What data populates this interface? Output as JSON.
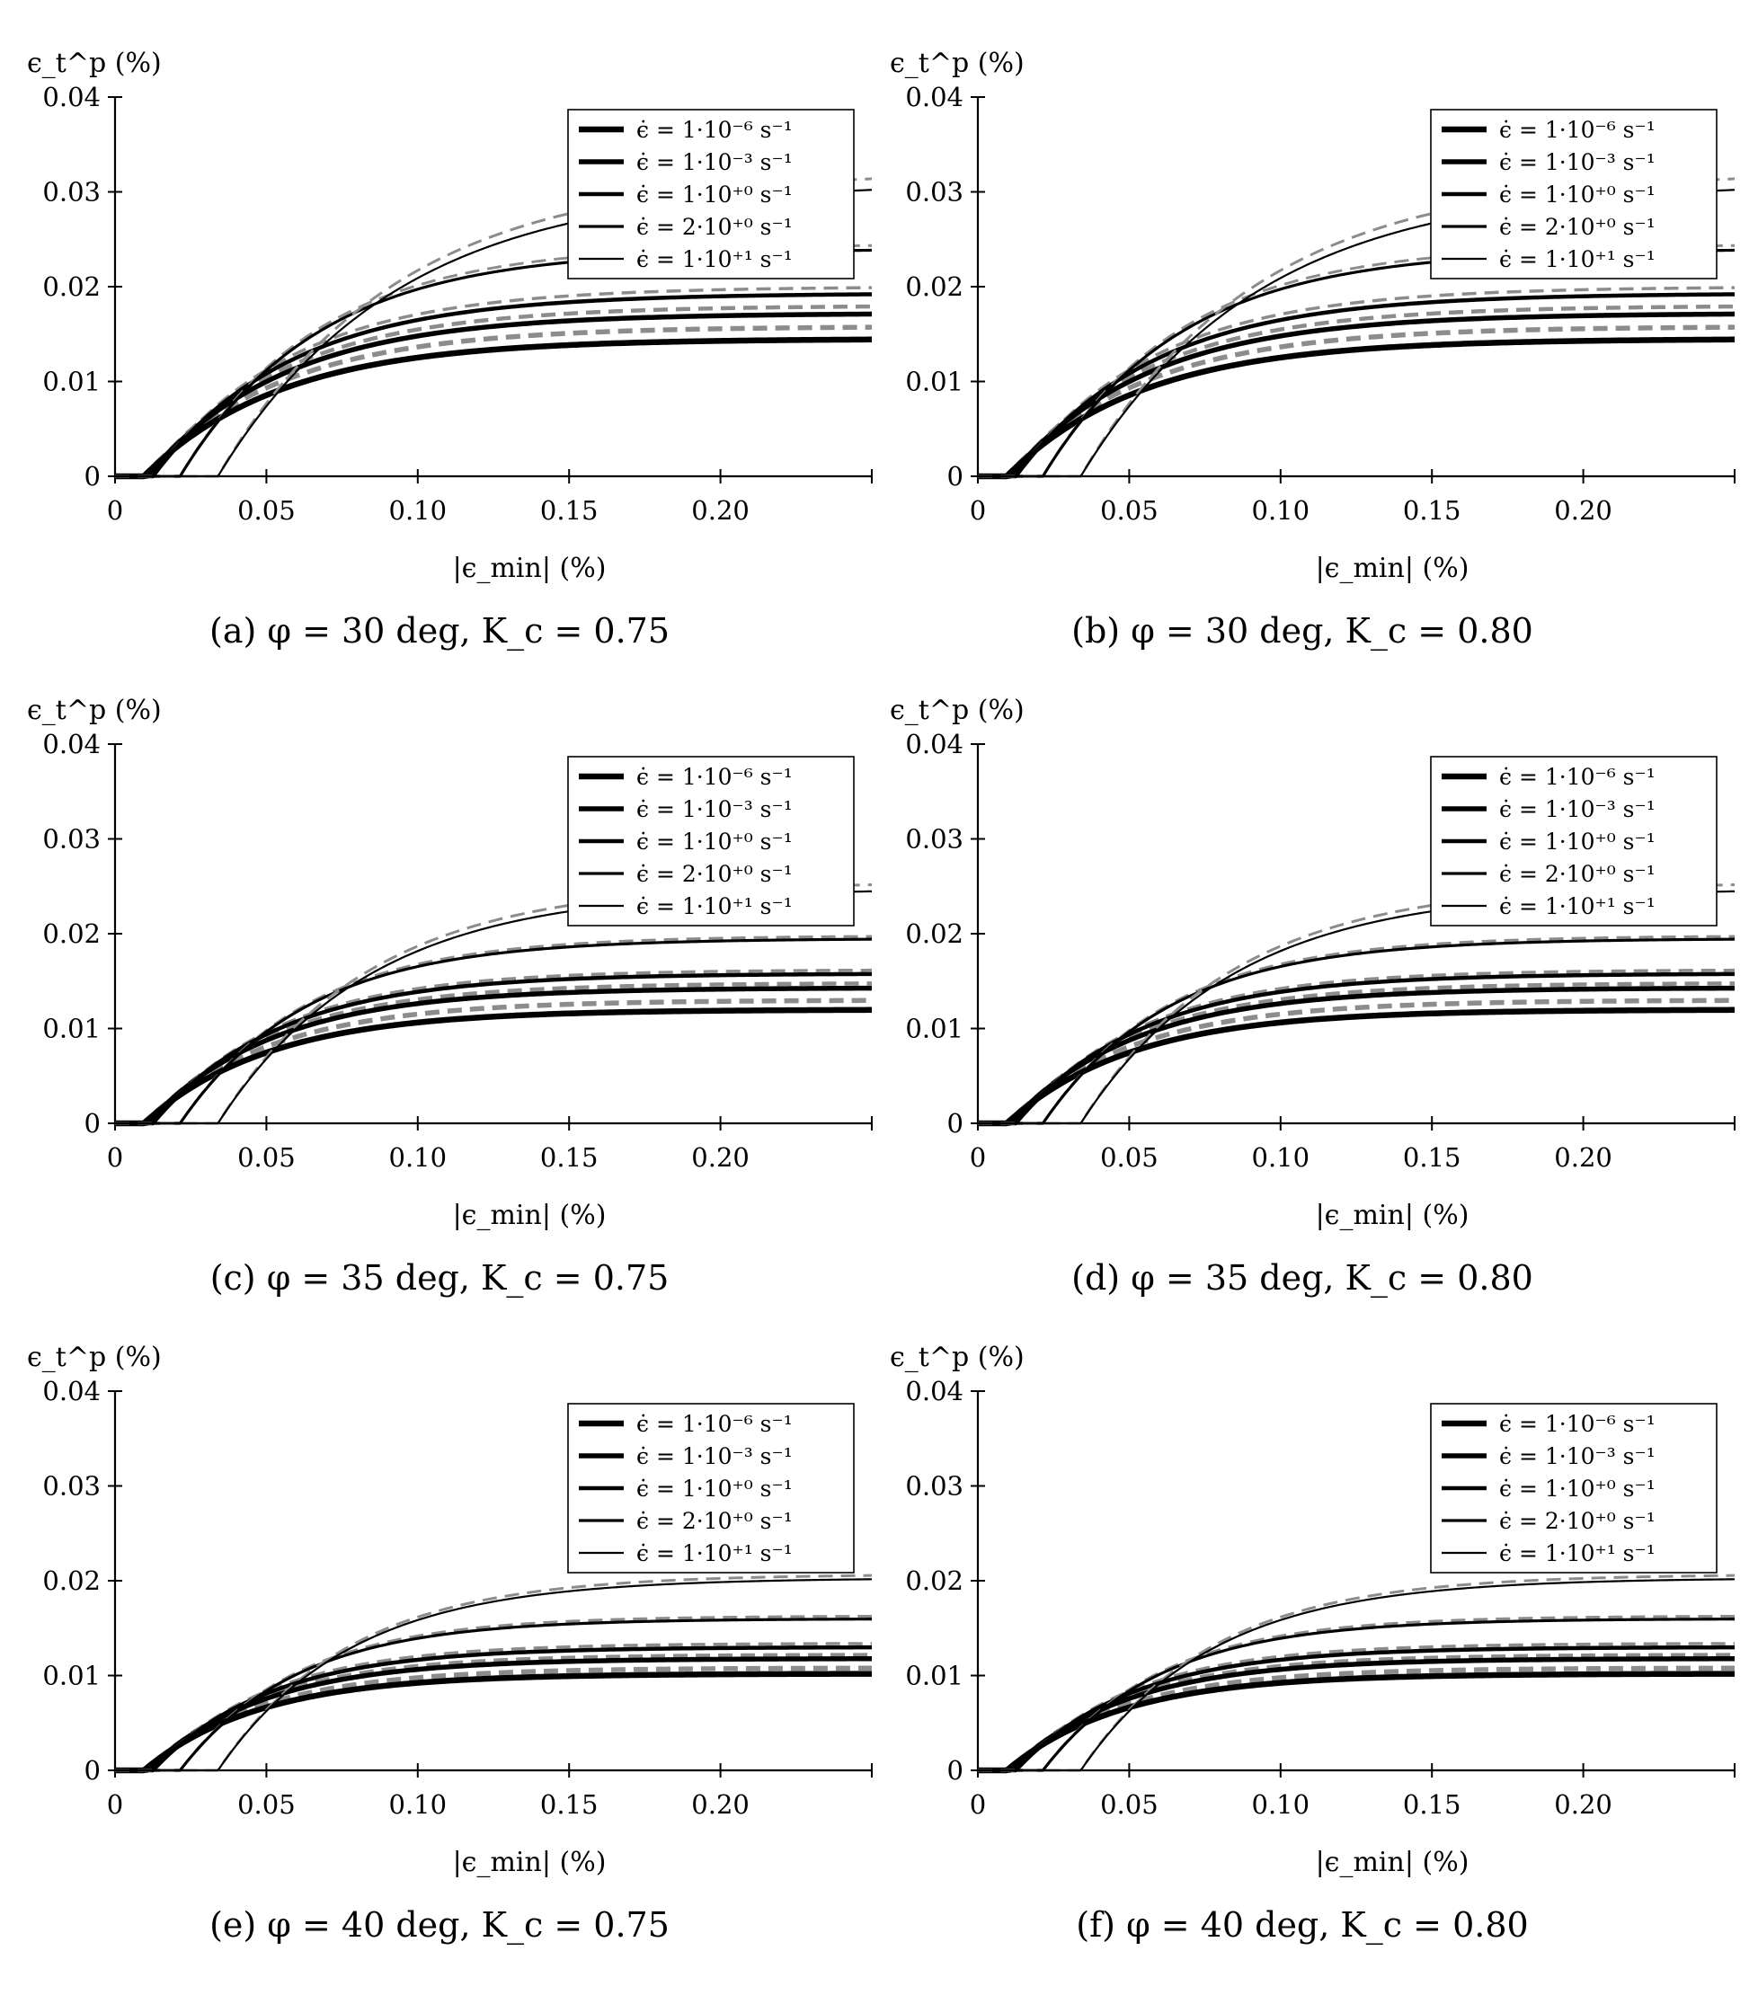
{
  "chart_data": [
    {
      "type": "line",
      "panel_label": "(a)",
      "caption": "(a) φ = 30 deg, K_c = 0.75",
      "xlabel": "|ϵ_min| (%)",
      "ylabel": "ϵ_t^p (%)",
      "xlim": [
        0,
        0.25
      ],
      "ylim": [
        0,
        0.04
      ],
      "x_ticks": [
        "0",
        "0.05",
        "0.10",
        "0.15",
        "0.20"
      ],
      "x_tick_values": [
        0,
        0.05,
        0.1,
        0.15,
        0.2
      ],
      "y_ticks": [
        "0",
        "0.01",
        "0.02",
        "0.03",
        "0.04"
      ],
      "y_tick_values": [
        0,
        0.01,
        0.02,
        0.03,
        0.04
      ],
      "legend_position": "top-right",
      "grid": false,
      "series": [
        {
          "name": "ϵ̇ = 1·10⁻⁶ s⁻¹",
          "onset": 0.0095,
          "plateau": 0.0145,
          "plateau_ref": 0.0158,
          "rate": 22
        },
        {
          "name": "ϵ̇ = 1·10⁻³ s⁻¹",
          "onset": 0.0105,
          "plateau": 0.0172,
          "plateau_ref": 0.018,
          "rate": 22
        },
        {
          "name": "ϵ̇ = 1·10⁺⁰ s⁻¹",
          "onset": 0.0125,
          "plateau": 0.0193,
          "plateau_ref": 0.02,
          "rate": 22
        },
        {
          "name": "ϵ̇ = 2·10⁺⁰ s⁻¹",
          "onset": 0.0215,
          "plateau": 0.024,
          "plateau_ref": 0.0245,
          "rate": 22
        },
        {
          "name": "ϵ̇ = 1·10⁺¹ s⁻¹",
          "onset": 0.034,
          "plateau": 0.031,
          "plateau_ref": 0.0322,
          "rate": 17
        }
      ]
    },
    {
      "type": "line",
      "panel_label": "(b)",
      "caption": "(b) φ = 30 deg, K_c = 0.80",
      "xlabel": "|ϵ_min| (%)",
      "ylabel": "ϵ_t^p (%)",
      "xlim": [
        0,
        0.25
      ],
      "ylim": [
        0,
        0.04
      ],
      "x_ticks": [
        "0",
        "0.05",
        "0.10",
        "0.15",
        "0.20"
      ],
      "x_tick_values": [
        0,
        0.05,
        0.1,
        0.15,
        0.2
      ],
      "y_ticks": [
        "0",
        "0.01",
        "0.02",
        "0.03",
        "0.04"
      ],
      "y_tick_values": [
        0,
        0.01,
        0.02,
        0.03,
        0.04
      ],
      "legend_position": "top-right",
      "grid": false,
      "series": [
        {
          "name": "ϵ̇ = 1·10⁻⁶ s⁻¹",
          "onset": 0.0095,
          "plateau": 0.0145,
          "plateau_ref": 0.0158,
          "rate": 22
        },
        {
          "name": "ϵ̇ = 1·10⁻³ s⁻¹",
          "onset": 0.0105,
          "plateau": 0.0172,
          "plateau_ref": 0.018,
          "rate": 22
        },
        {
          "name": "ϵ̇ = 1·10⁺⁰ s⁻¹",
          "onset": 0.0125,
          "plateau": 0.0193,
          "plateau_ref": 0.02,
          "rate": 22
        },
        {
          "name": "ϵ̇ = 2·10⁺⁰ s⁻¹",
          "onset": 0.0215,
          "plateau": 0.024,
          "plateau_ref": 0.0245,
          "rate": 22
        },
        {
          "name": "ϵ̇ = 1·10⁺¹ s⁻¹",
          "onset": 0.034,
          "plateau": 0.031,
          "plateau_ref": 0.0322,
          "rate": 17
        }
      ]
    },
    {
      "type": "line",
      "panel_label": "(c)",
      "caption": "(c) φ = 35 deg, K_c = 0.75",
      "xlabel": "|ϵ_min| (%)",
      "ylabel": "ϵ_t^p (%)",
      "xlim": [
        0,
        0.25
      ],
      "ylim": [
        0,
        0.04
      ],
      "x_ticks": [
        "0",
        "0.05",
        "0.10",
        "0.15",
        "0.20"
      ],
      "x_tick_values": [
        0,
        0.05,
        0.1,
        0.15,
        0.2
      ],
      "y_ticks": [
        "0",
        "0.01",
        "0.02",
        "0.03",
        "0.04"
      ],
      "y_tick_values": [
        0,
        0.01,
        0.02,
        0.03,
        0.04
      ],
      "legend_position": "top-right",
      "grid": false,
      "series": [
        {
          "name": "ϵ̇ = 1·10⁻⁶ s⁻¹",
          "onset": 0.0095,
          "plateau": 0.012,
          "plateau_ref": 0.013,
          "rate": 24
        },
        {
          "name": "ϵ̇ = 1·10⁻³ s⁻¹",
          "onset": 0.0105,
          "plateau": 0.0143,
          "plateau_ref": 0.0148,
          "rate": 24
        },
        {
          "name": "ϵ̇ = 1·10⁺⁰ s⁻¹",
          "onset": 0.0125,
          "plateau": 0.0158,
          "plateau_ref": 0.0162,
          "rate": 24
        },
        {
          "name": "ϵ̇ = 2·10⁺⁰ s⁻¹",
          "onset": 0.0215,
          "plateau": 0.0195,
          "plateau_ref": 0.0198,
          "rate": 24
        },
        {
          "name": "ϵ̇ = 1·10⁺¹ s⁻¹",
          "onset": 0.034,
          "plateau": 0.0248,
          "plateau_ref": 0.0255,
          "rate": 20
        }
      ]
    },
    {
      "type": "line",
      "panel_label": "(d)",
      "caption": "(d) φ = 35 deg, K_c = 0.80",
      "xlabel": "|ϵ_min| (%)",
      "ylabel": "ϵ_t^p (%)",
      "xlim": [
        0,
        0.25
      ],
      "ylim": [
        0,
        0.04
      ],
      "x_ticks": [
        "0",
        "0.05",
        "0.10",
        "0.15",
        "0.20"
      ],
      "x_tick_values": [
        0,
        0.05,
        0.1,
        0.15,
        0.2
      ],
      "y_ticks": [
        "0",
        "0.01",
        "0.02",
        "0.03",
        "0.04"
      ],
      "y_tick_values": [
        0,
        0.01,
        0.02,
        0.03,
        0.04
      ],
      "legend_position": "top-right",
      "grid": false,
      "series": [
        {
          "name": "ϵ̇ = 1·10⁻⁶ s⁻¹",
          "onset": 0.0095,
          "plateau": 0.012,
          "plateau_ref": 0.013,
          "rate": 24
        },
        {
          "name": "ϵ̇ = 1·10⁻³ s⁻¹",
          "onset": 0.0105,
          "plateau": 0.0143,
          "plateau_ref": 0.0148,
          "rate": 24
        },
        {
          "name": "ϵ̇ = 1·10⁺⁰ s⁻¹",
          "onset": 0.0125,
          "plateau": 0.0158,
          "plateau_ref": 0.0162,
          "rate": 24
        },
        {
          "name": "ϵ̇ = 2·10⁺⁰ s⁻¹",
          "onset": 0.0215,
          "plateau": 0.0195,
          "plateau_ref": 0.0198,
          "rate": 24
        },
        {
          "name": "ϵ̇ = 1·10⁺¹ s⁻¹",
          "onset": 0.034,
          "plateau": 0.0248,
          "plateau_ref": 0.0255,
          "rate": 20
        }
      ]
    },
    {
      "type": "line",
      "panel_label": "(e)",
      "caption": "(e) φ = 40 deg, K_c = 0.75",
      "xlabel": "|ϵ_min| (%)",
      "ylabel": "ϵ_t^p (%)",
      "xlim": [
        0,
        0.25
      ],
      "ylim": [
        0,
        0.04
      ],
      "x_ticks": [
        "0",
        "0.05",
        "0.10",
        "0.15",
        "0.20"
      ],
      "x_tick_values": [
        0,
        0.05,
        0.1,
        0.15,
        0.2
      ],
      "y_ticks": [
        "0",
        "0.01",
        "0.02",
        "0.03",
        "0.04"
      ],
      "y_tick_values": [
        0,
        0.01,
        0.02,
        0.03,
        0.04
      ],
      "legend_position": "top-right",
      "grid": false,
      "series": [
        {
          "name": "ϵ̇ = 1·10⁻⁶ s⁻¹",
          "onset": 0.0095,
          "plateau": 0.0102,
          "plateau_ref": 0.0108,
          "rate": 26
        },
        {
          "name": "ϵ̇ = 1·10⁻³ s⁻¹",
          "onset": 0.0105,
          "plateau": 0.0118,
          "plateau_ref": 0.0122,
          "rate": 26
        },
        {
          "name": "ϵ̇ = 1·10⁺⁰ s⁻¹",
          "onset": 0.0125,
          "plateau": 0.013,
          "plateau_ref": 0.0134,
          "rate": 26
        },
        {
          "name": "ϵ̇ = 2·10⁺⁰ s⁻¹",
          "onset": 0.0215,
          "plateau": 0.016,
          "plateau_ref": 0.0163,
          "rate": 26
        },
        {
          "name": "ϵ̇ = 1·10⁺¹ s⁻¹",
          "onset": 0.034,
          "plateau": 0.0203,
          "plateau_ref": 0.0207,
          "rate": 23
        }
      ]
    },
    {
      "type": "line",
      "panel_label": "(f)",
      "caption": "(f) φ = 40 deg, K_c = 0.80",
      "xlabel": "|ϵ_min| (%)",
      "ylabel": "ϵ_t^p (%)",
      "xlim": [
        0,
        0.25
      ],
      "ylim": [
        0,
        0.04
      ],
      "x_ticks": [
        "0",
        "0.05",
        "0.10",
        "0.15",
        "0.20"
      ],
      "x_tick_values": [
        0,
        0.05,
        0.1,
        0.15,
        0.2
      ],
      "y_ticks": [
        "0",
        "0.01",
        "0.02",
        "0.03",
        "0.04"
      ],
      "y_tick_values": [
        0,
        0.01,
        0.02,
        0.03,
        0.04
      ],
      "legend_position": "top-right",
      "grid": false,
      "series": [
        {
          "name": "ϵ̇ = 1·10⁻⁶ s⁻¹",
          "onset": 0.0095,
          "plateau": 0.0102,
          "plateau_ref": 0.0108,
          "rate": 26
        },
        {
          "name": "ϵ̇ = 1·10⁻³ s⁻¹",
          "onset": 0.0105,
          "plateau": 0.0118,
          "plateau_ref": 0.0122,
          "rate": 26
        },
        {
          "name": "ϵ̇ = 1·10⁺⁰ s⁻¹",
          "onset": 0.0125,
          "plateau": 0.013,
          "plateau_ref": 0.0134,
          "rate": 26
        },
        {
          "name": "ϵ̇ = 2·10⁺⁰ s⁻¹",
          "onset": 0.0215,
          "plateau": 0.016,
          "plateau_ref": 0.0163,
          "rate": 26
        },
        {
          "name": "ϵ̇ = 1·10⁺¹ s⁻¹",
          "onset": 0.034,
          "plateau": 0.0203,
          "plateau_ref": 0.0207,
          "rate": 23
        }
      ]
    }
  ],
  "colors": {
    "model_line": "#000000",
    "reference_dashed": "#8c8c8c",
    "axis": "#000000"
  }
}
